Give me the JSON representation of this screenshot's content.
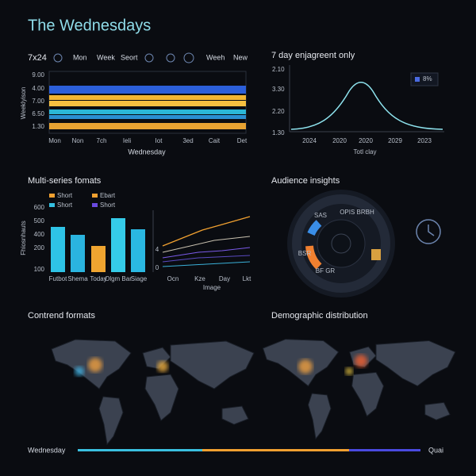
{
  "header": {
    "title": "The Wednesdays"
  },
  "panels": [
    {
      "toolbar": [
        "7x24",
        "Mon",
        "Week",
        "Seort",
        "Weeh",
        "New"
      ],
      "y_axis_label": "Weeklyison",
      "y_labels": [
        "9.00",
        "4.00",
        "7.00",
        "6.50",
        "1.30"
      ],
      "x_labels": [
        "Mon",
        "Non",
        "7ch",
        "Ieli",
        "Iot",
        "3ed",
        "Cait",
        "Det"
      ],
      "x_axis_label": "Wednesday"
    },
    {
      "title": "7 day enjagreent only",
      "y_labels": [
        "2.10",
        "3.30",
        "2.20",
        "1.30"
      ],
      "legend": "8%",
      "x_labels": [
        "2024",
        "2020",
        "2020",
        "2029",
        "2023"
      ],
      "x_axis_label": "Totl clay"
    },
    {
      "title": "Multi-series fomats",
      "legend": [
        "Short",
        "Ebart",
        "Short",
        "Short"
      ],
      "y_axis_label": "Fhiosnhauts",
      "y_labels": [
        "600",
        "500",
        "400",
        "200",
        "100"
      ],
      "x_labels": [
        "Futbot",
        "Shema",
        "Today",
        "Olgm Bar",
        "Siage"
      ],
      "line_y_labels": [
        "4",
        "0"
      ],
      "line_x_labels": [
        "Ocn",
        "Kze",
        "Day",
        "Lkt"
      ],
      "line_x_axis_label": "Image"
    },
    {
      "title": "Audience insights",
      "ring_labels": [
        "OPIS BRBH",
        "SAS",
        "BSR",
        "BF GR"
      ]
    },
    {
      "title": "Contrend formats"
    },
    {
      "title": "Demographic distribution"
    }
  ],
  "footer": {
    "start": "Wednesday",
    "end": "Quai"
  }
}
